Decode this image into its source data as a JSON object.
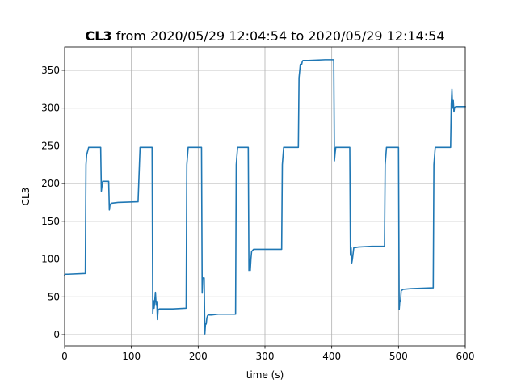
{
  "chart_data": {
    "type": "line",
    "title_bold": "CL3",
    "title_rest": " from 2020/05/29 12:04:54 to 2020/05/29 12:14:54",
    "xlabel": "time (s)",
    "ylabel": "CL3",
    "xlim": [
      0,
      600
    ],
    "ylim": [
      -15,
      381
    ],
    "xticks": [
      "0",
      "100",
      "200",
      "300",
      "400",
      "500",
      "600"
    ],
    "xtick_values": [
      0,
      100,
      200,
      300,
      400,
      500,
      600
    ],
    "yticks": [
      "0",
      "50",
      "100",
      "150",
      "200",
      "250",
      "300",
      "350"
    ],
    "ytick_values": [
      0,
      50,
      100,
      150,
      200,
      250,
      300,
      350
    ],
    "grid": true,
    "color": "#1f77b4",
    "series": [
      {
        "x": [
          0,
          1,
          5,
          31,
          32,
          33,
          36,
          54,
          55,
          56,
          57,
          66,
          67,
          68,
          70,
          80,
          110,
          112,
          113,
          131,
          132,
          133,
          134,
          136,
          137,
          138,
          139,
          140,
          142,
          147,
          162,
          182,
          183,
          185,
          205,
          206,
          207,
          209,
          210,
          211,
          212,
          213,
          214,
          215,
          216,
          220,
          230,
          256,
          257,
          259,
          275,
          276,
          277,
          278,
          279,
          280,
          283,
          295,
          325,
          326,
          328,
          350,
          351,
          353,
          355,
          356,
          357,
          365,
          390,
          403,
          404,
          405,
          406,
          407,
          410,
          427,
          428,
          429,
          430,
          431,
          433,
          440,
          460,
          479,
          480,
          482,
          500,
          501,
          502,
          503,
          504,
          507,
          520,
          552,
          553,
          555,
          578,
          579,
          580,
          581,
          582,
          583,
          584,
          586,
          600
        ],
        "y": [
          79,
          80,
          80,
          81,
          225,
          238,
          248,
          248,
          190,
          197,
          203,
          203,
          165,
          172,
          174,
          175,
          176,
          225,
          248,
          248,
          28,
          45,
          35,
          56,
          40,
          44,
          20,
          33,
          34,
          34,
          34,
          35,
          225,
          248,
          248,
          55,
          75,
          75,
          1,
          15,
          14,
          22,
          25,
          26,
          26,
          26,
          27,
          27,
          225,
          248,
          248,
          85,
          100,
          85,
          100,
          110,
          113,
          113,
          113,
          225,
          248,
          248,
          340,
          358,
          358,
          362,
          363,
          363,
          364,
          364,
          230,
          240,
          248,
          248,
          248,
          248,
          105,
          115,
          95,
          100,
          115,
          116,
          117,
          117,
          225,
          248,
          248,
          33,
          45,
          44,
          58,
          60,
          61,
          62,
          225,
          248,
          248,
          305,
          325,
          300,
          310,
          295,
          301,
          302,
          302
        ]
      }
    ]
  }
}
